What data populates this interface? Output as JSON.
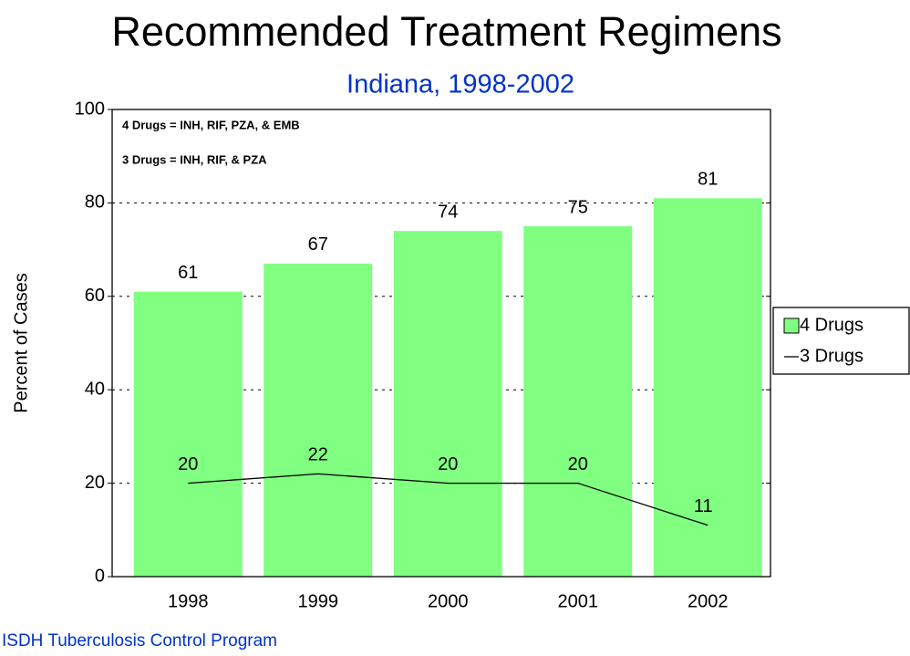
{
  "chart_data": {
    "type": "bar",
    "title": "Recommended Treatment Regimens",
    "subtitle": "Indiana, 1998-2002",
    "y_label": "Percent of Cases",
    "annotations": [
      "4 Drugs = INH, RIF, PZA, & EMB",
      "3 Drugs = INH, RIF, & PZA"
    ],
    "footer": "ISDH Tuberculosis Control Program",
    "categories": [
      "1998",
      "1999",
      "2000",
      "2001",
      "2002"
    ],
    "series": [
      {
        "name": "4 Drugs",
        "type": "bar",
        "color": "#80ff80",
        "values": [
          61,
          67,
          74,
          75,
          81
        ]
      },
      {
        "name": "3 Drugs",
        "type": "line",
        "color": "#000000",
        "values": [
          20,
          22,
          20,
          20,
          11
        ]
      }
    ],
    "ylim": [
      0,
      100
    ],
    "yticks": [
      0,
      20,
      40,
      60,
      80,
      100
    ],
    "grid": true,
    "legend": "right"
  }
}
